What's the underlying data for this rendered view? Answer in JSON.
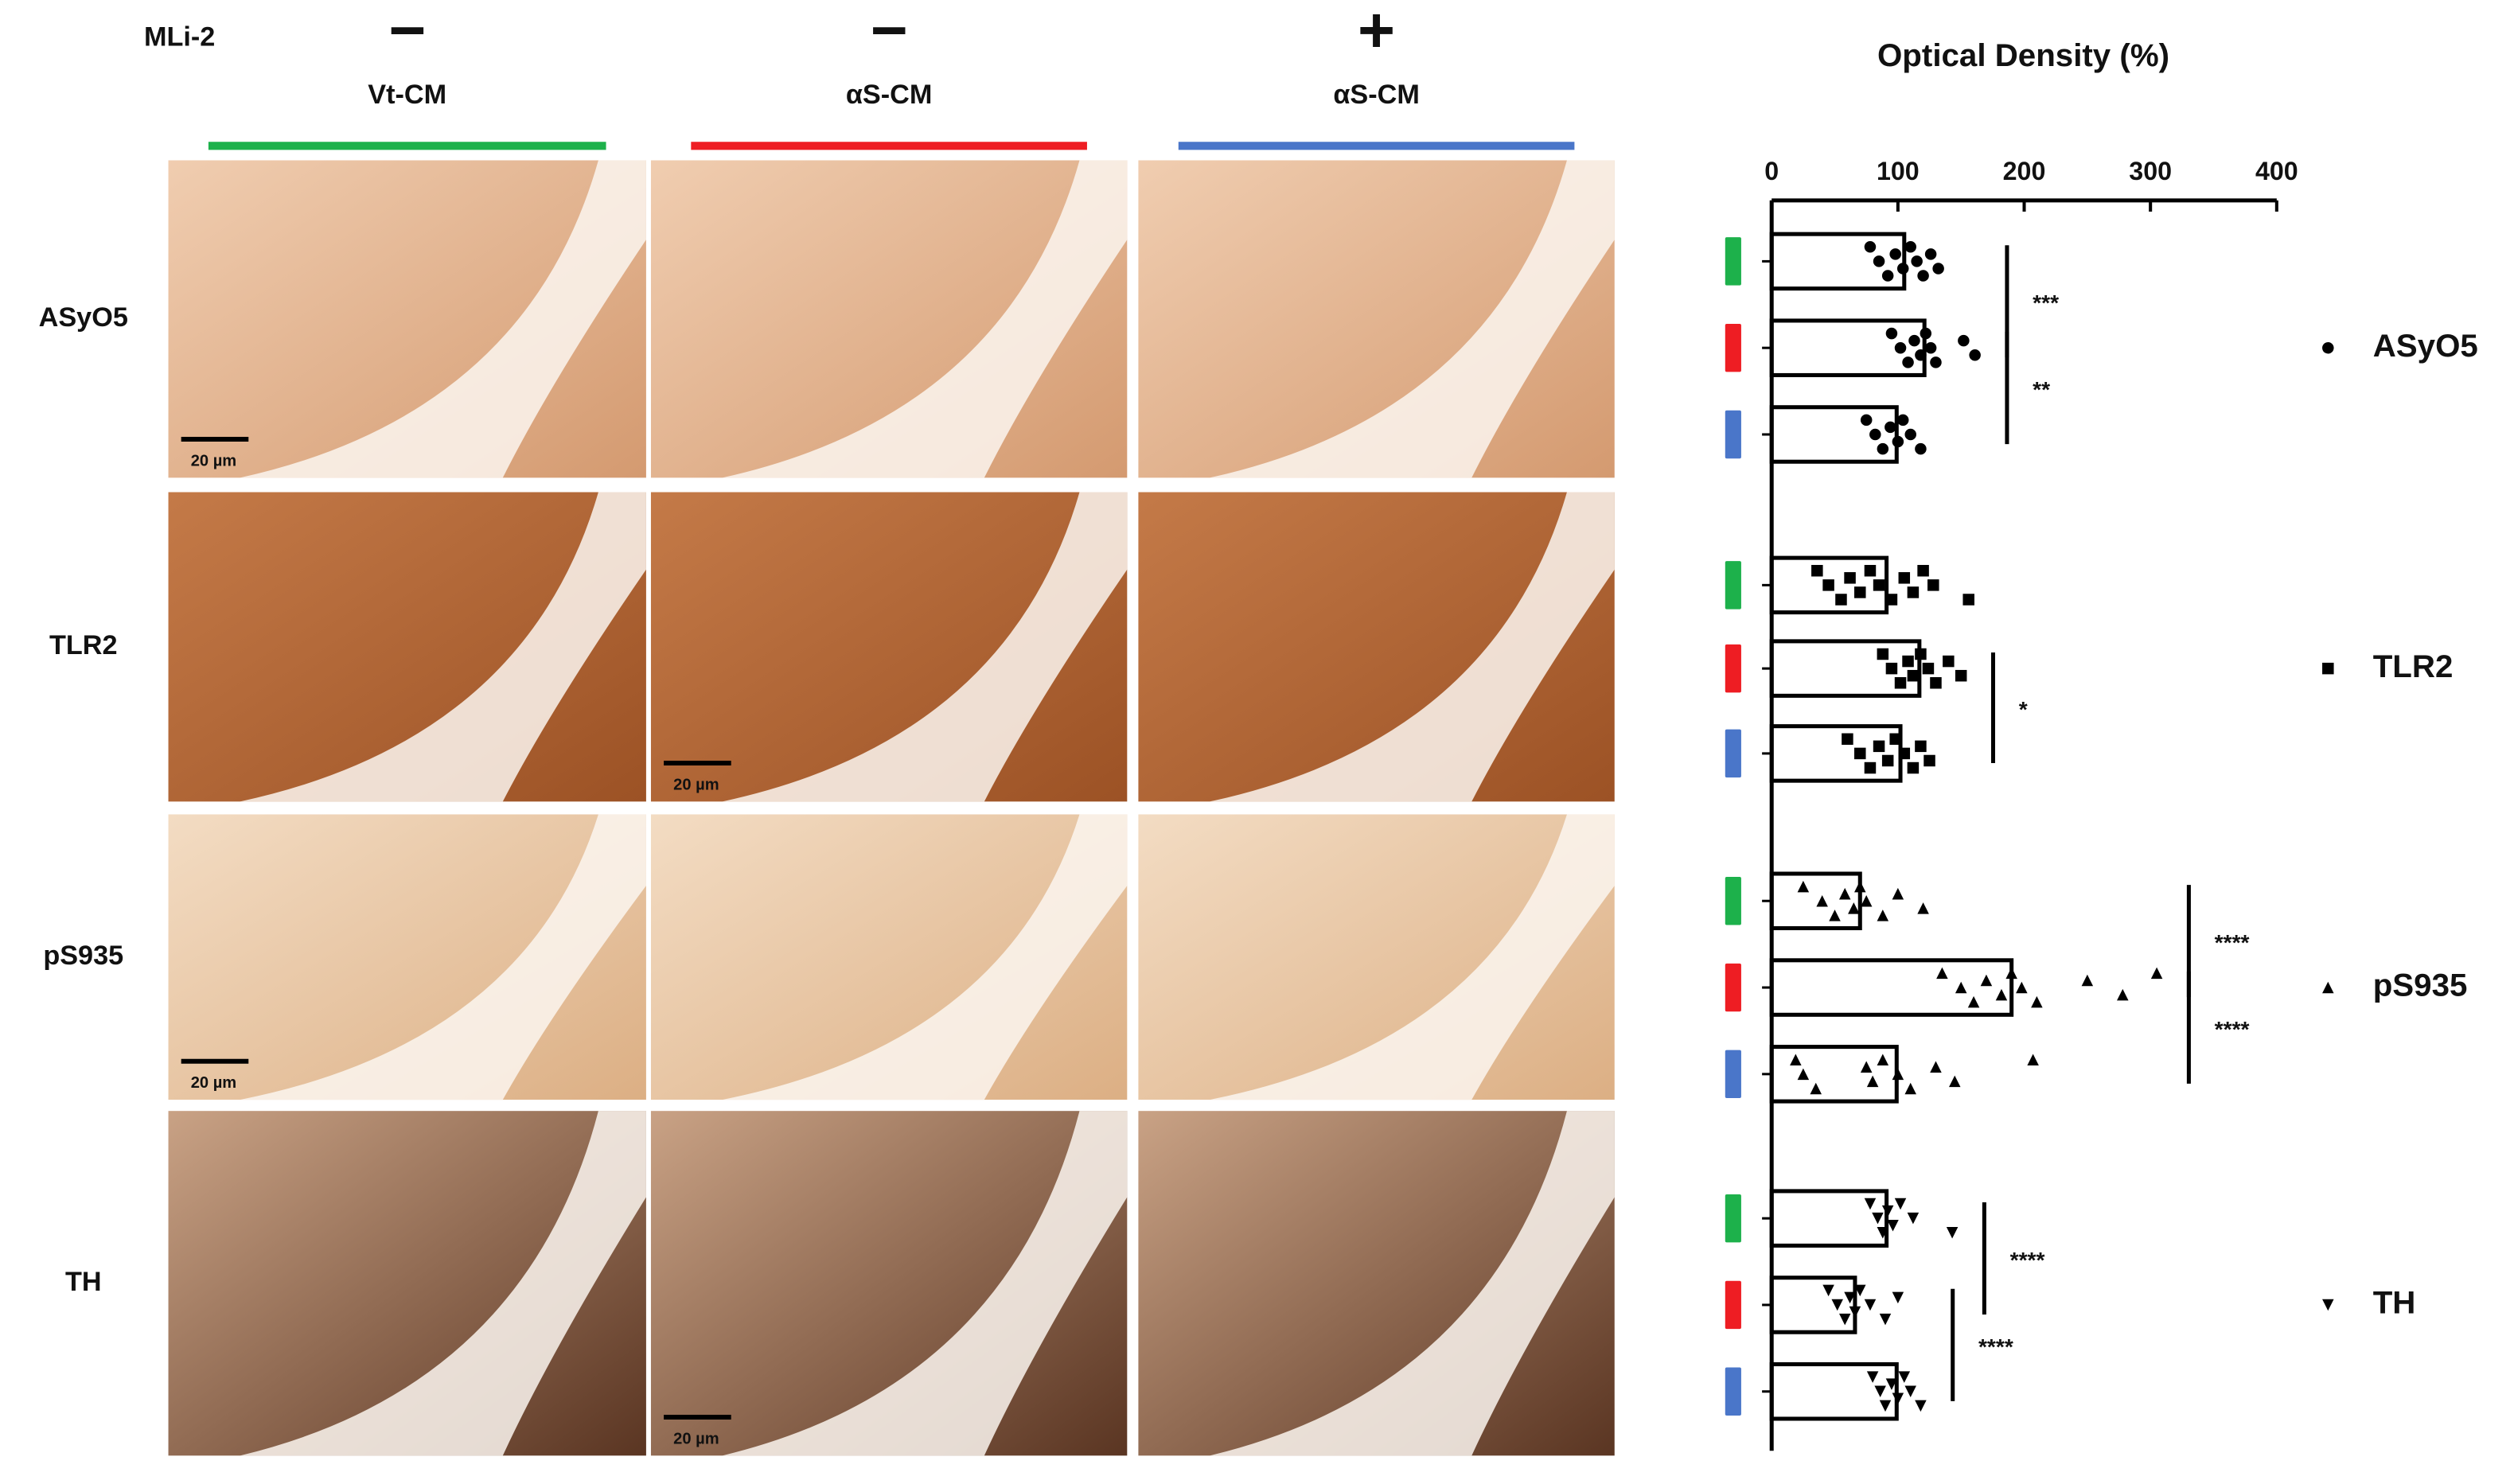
{
  "figure": {
    "treatment_label": "MLi-2",
    "columns": [
      {
        "sign": "−",
        "label": "Vt-CM",
        "color": "#1db14b"
      },
      {
        "sign": "−",
        "label": "αS-CM",
        "color": "#ee1d23"
      },
      {
        "sign": "+",
        "label": "αS-CM",
        "color": "#4a76c9"
      }
    ],
    "rows": [
      {
        "label": "ASyO5",
        "scale_bars": [
          "20 µm",
          null,
          null
        ]
      },
      {
        "label": "TLR2",
        "scale_bars": [
          null,
          "20 µm",
          null
        ]
      },
      {
        "label": "pS935",
        "scale_bars": [
          "20 µm",
          null,
          null
        ]
      },
      {
        "label": "TH",
        "scale_bars": [
          null,
          "20 µm",
          null
        ]
      }
    ]
  },
  "chart_data": {
    "type": "bar",
    "orientation": "horizontal",
    "title": "Optical Density (%)",
    "xlim": [
      0,
      400
    ],
    "xticks": [
      0,
      100,
      200,
      300,
      400
    ],
    "colors": [
      "#1db14b",
      "#ee1d23",
      "#4a76c9"
    ],
    "groups": [
      {
        "name": "ASyO5",
        "marker": "circle",
        "values": [
          105,
          121,
          99
        ],
        "points": [
          [
            78,
            85,
            92,
            98,
            104,
            110,
            115,
            120,
            126,
            132
          ],
          [
            95,
            102,
            108,
            113,
            118,
            122,
            126,
            130,
            152,
            161
          ],
          [
            75,
            82,
            88,
            94,
            100,
            104,
            110,
            118
          ]
        ],
        "significance": [
          "***",
          "**"
        ]
      },
      {
        "name": "TLR2",
        "marker": "square",
        "values": [
          91,
          117,
          102
        ],
        "points": [
          [
            36,
            45,
            55,
            62,
            70,
            78,
            85,
            95,
            105,
            112,
            120,
            128,
            156
          ],
          [
            88,
            95,
            102,
            108,
            112,
            118,
            124,
            130,
            140,
            150
          ],
          [
            60,
            70,
            78,
            85,
            92,
            98,
            105,
            112,
            118,
            125
          ]
        ],
        "significance": [
          null,
          "*"
        ]
      },
      {
        "name": "pS935",
        "marker": "triangle-up",
        "values": [
          70,
          190,
          99
        ],
        "points": [
          [
            25,
            40,
            50,
            58,
            65,
            70,
            75,
            88,
            100,
            120
          ],
          [
            135,
            150,
            160,
            170,
            182,
            190,
            198,
            210,
            250,
            278,
            305
          ],
          [
            19,
            25,
            35,
            75,
            80,
            88,
            100,
            110,
            130,
            145,
            207
          ]
        ],
        "significance": [
          "****",
          "****"
        ]
      },
      {
        "name": "TH",
        "marker": "triangle-down",
        "values": [
          91,
          66,
          99
        ],
        "points": [
          [
            78,
            84,
            88,
            92,
            96,
            102,
            112,
            143
          ],
          [
            45,
            52,
            58,
            62,
            66,
            70,
            78,
            90,
            100
          ],
          [
            80,
            86,
            90,
            95,
            100,
            105,
            110,
            118
          ]
        ],
        "significance": [
          "****",
          "****"
        ]
      }
    ]
  }
}
